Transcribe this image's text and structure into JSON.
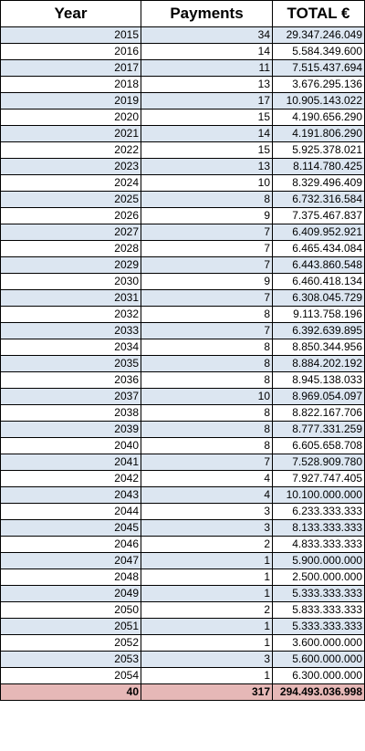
{
  "table": {
    "headers": [
      "Year",
      "Payments",
      "TOTAL €"
    ],
    "rows": [
      [
        "2015",
        "34",
        "29.347.246.049"
      ],
      [
        "2016",
        "14",
        "5.584.349.600"
      ],
      [
        "2017",
        "11",
        "7.515.437.694"
      ],
      [
        "2018",
        "13",
        "3.676.295.136"
      ],
      [
        "2019",
        "17",
        "10.905.143.022"
      ],
      [
        "2020",
        "15",
        "4.190.656.290"
      ],
      [
        "2021",
        "14",
        "4.191.806.290"
      ],
      [
        "2022",
        "15",
        "5.925.378.021"
      ],
      [
        "2023",
        "13",
        "8.114.780.425"
      ],
      [
        "2024",
        "10",
        "8.329.496.409"
      ],
      [
        "2025",
        "8",
        "6.732.316.584"
      ],
      [
        "2026",
        "9",
        "7.375.467.837"
      ],
      [
        "2027",
        "7",
        "6.409.952.921"
      ],
      [
        "2028",
        "7",
        "6.465.434.084"
      ],
      [
        "2029",
        "7",
        "6.443.860.548"
      ],
      [
        "2030",
        "9",
        "6.460.418.134"
      ],
      [
        "2031",
        "7",
        "6.308.045.729"
      ],
      [
        "2032",
        "8",
        "9.113.758.196"
      ],
      [
        "2033",
        "7",
        "6.392.639.895"
      ],
      [
        "2034",
        "8",
        "8.850.344.956"
      ],
      [
        "2035",
        "8",
        "8.884.202.192"
      ],
      [
        "2036",
        "8",
        "8.945.138.033"
      ],
      [
        "2037",
        "10",
        "8.969.054.097"
      ],
      [
        "2038",
        "8",
        "8.822.167.706"
      ],
      [
        "2039",
        "8",
        "8.777.331.259"
      ],
      [
        "2040",
        "8",
        "6.605.658.708"
      ],
      [
        "2041",
        "7",
        "7.528.909.780"
      ],
      [
        "2042",
        "4",
        "7.927.747.405"
      ],
      [
        "2043",
        "4",
        "10.100.000.000"
      ],
      [
        "2044",
        "3",
        "6.233.333.333"
      ],
      [
        "2045",
        "3",
        "8.133.333.333"
      ],
      [
        "2046",
        "2",
        "4.833.333.333"
      ],
      [
        "2047",
        "1",
        "5.900.000.000"
      ],
      [
        "2048",
        "1",
        "2.500.000.000"
      ],
      [
        "2049",
        "1",
        "5.333.333.333"
      ],
      [
        "2050",
        "2",
        "5.833.333.333"
      ],
      [
        "2051",
        "1",
        "5.333.333.333"
      ],
      [
        "2052",
        "1",
        "3.600.000.000"
      ],
      [
        "2053",
        "3",
        "5.600.000.000"
      ],
      [
        "2054",
        "1",
        "6.300.000.000"
      ]
    ],
    "total": [
      "40",
      "317",
      "294.493.036.998"
    ]
  },
  "colors": {
    "band": "#dce6f1",
    "total_row": "#e6b8b7",
    "border": "#000000"
  }
}
